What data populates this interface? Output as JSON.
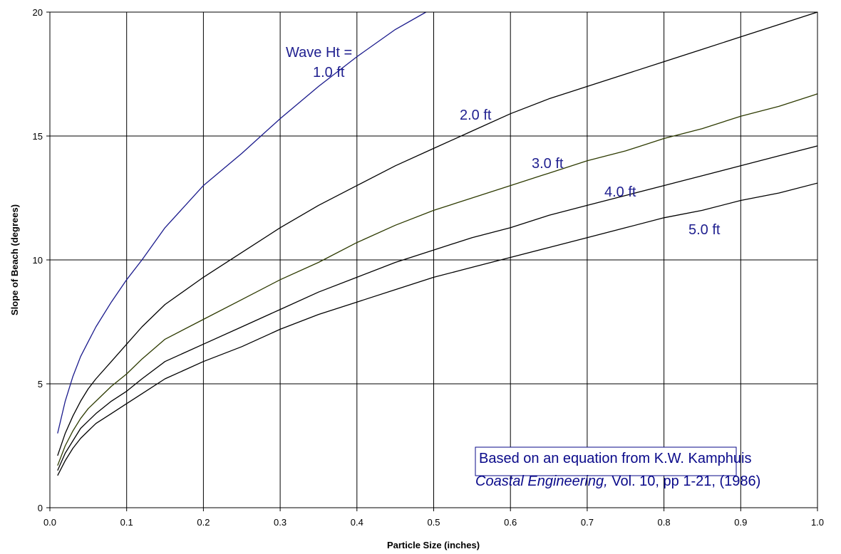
{
  "chart_data": {
    "type": "line",
    "title": "",
    "xlabel": "Particle Size (inches)",
    "ylabel": "Slope of Beach (degrees)",
    "xlim": [
      0.0,
      1.0
    ],
    "ylim": [
      0,
      20
    ],
    "x_ticks": [
      "0.0",
      "0.1",
      "0.2",
      "0.3",
      "0.4",
      "0.5",
      "0.6",
      "0.7",
      "0.8",
      "0.9",
      "1.0"
    ],
    "y_ticks": [
      "0",
      "5",
      "10",
      "15",
      "20"
    ],
    "grid": true,
    "legend": "none",
    "series": [
      {
        "name": "Wave Ht = 1.0 ft",
        "color": "#1a1a8c",
        "x": [
          0.01,
          0.02,
          0.03,
          0.04,
          0.05,
          0.06,
          0.08,
          0.1,
          0.12,
          0.15,
          0.2,
          0.25,
          0.3,
          0.35,
          0.4,
          0.45,
          0.49
        ],
        "y": [
          3.0,
          4.3,
          5.3,
          6.1,
          6.7,
          7.3,
          8.3,
          9.2,
          10.0,
          11.3,
          13.0,
          14.3,
          15.7,
          17.0,
          18.2,
          19.3,
          20.0
        ]
      },
      {
        "name": "2.0 ft",
        "color": "#000000",
        "x": [
          0.01,
          0.02,
          0.03,
          0.04,
          0.05,
          0.06,
          0.08,
          0.1,
          0.12,
          0.15,
          0.2,
          0.25,
          0.3,
          0.35,
          0.4,
          0.45,
          0.5,
          0.55,
          0.6,
          0.65,
          0.7,
          0.75,
          0.8,
          0.85,
          0.9,
          0.95,
          1.0
        ],
        "y": [
          2.1,
          3.0,
          3.7,
          4.3,
          4.8,
          5.2,
          5.9,
          6.6,
          7.3,
          8.2,
          9.3,
          10.3,
          11.3,
          12.2,
          13.0,
          13.8,
          14.5,
          15.2,
          15.9,
          16.5,
          17.0,
          17.5,
          18.0,
          18.5,
          19.0,
          19.5,
          20.0
        ]
      },
      {
        "name": "3.0 ft",
        "color": "#2d3a00",
        "x": [
          0.01,
          0.02,
          0.03,
          0.04,
          0.05,
          0.06,
          0.08,
          0.1,
          0.12,
          0.15,
          0.2,
          0.25,
          0.3,
          0.35,
          0.4,
          0.45,
          0.5,
          0.55,
          0.6,
          0.65,
          0.7,
          0.75,
          0.8,
          0.85,
          0.9,
          0.95,
          1.0
        ],
        "y": [
          1.7,
          2.5,
          3.1,
          3.6,
          4.0,
          4.3,
          4.9,
          5.4,
          6.0,
          6.8,
          7.6,
          8.4,
          9.2,
          9.9,
          10.7,
          11.4,
          12.0,
          12.5,
          13.0,
          13.5,
          14.0,
          14.4,
          14.9,
          15.3,
          15.8,
          16.2,
          16.7
        ]
      },
      {
        "name": "4.0 ft",
        "color": "#000000",
        "x": [
          0.01,
          0.02,
          0.03,
          0.04,
          0.05,
          0.06,
          0.08,
          0.1,
          0.12,
          0.15,
          0.2,
          0.25,
          0.3,
          0.35,
          0.4,
          0.45,
          0.5,
          0.55,
          0.6,
          0.65,
          0.7,
          0.75,
          0.8,
          0.85,
          0.9,
          0.95,
          1.0
        ],
        "y": [
          1.5,
          2.2,
          2.7,
          3.2,
          3.5,
          3.8,
          4.3,
          4.7,
          5.2,
          5.9,
          6.6,
          7.3,
          8.0,
          8.7,
          9.3,
          9.9,
          10.4,
          10.9,
          11.3,
          11.8,
          12.2,
          12.6,
          13.0,
          13.4,
          13.8,
          14.2,
          14.6
        ]
      },
      {
        "name": "5.0 ft",
        "color": "#000000",
        "x": [
          0.01,
          0.02,
          0.03,
          0.04,
          0.05,
          0.06,
          0.08,
          0.1,
          0.12,
          0.15,
          0.2,
          0.25,
          0.3,
          0.35,
          0.4,
          0.45,
          0.5,
          0.55,
          0.6,
          0.65,
          0.7,
          0.75,
          0.8,
          0.85,
          0.9,
          0.95,
          1.0
        ],
        "y": [
          1.3,
          1.9,
          2.4,
          2.8,
          3.1,
          3.4,
          3.8,
          4.2,
          4.6,
          5.2,
          5.9,
          6.5,
          7.2,
          7.8,
          8.3,
          8.8,
          9.3,
          9.7,
          10.1,
          10.5,
          10.9,
          11.3,
          11.7,
          12.0,
          12.4,
          12.7,
          13.1
        ]
      }
    ],
    "annotations": {
      "wave_label_line1": "Wave Ht =",
      "wave_label_line2": "1.0 ft",
      "label_2ft": "2.0 ft",
      "label_3ft": "3.0 ft",
      "label_4ft": "4.0 ft",
      "label_5ft": "5.0 ft",
      "note_line1": "Based on an equation from K.W. Kamphuis",
      "note_line2_italic": "Coastal Engineering,",
      "note_line2_rest": " Vol. 10, pp 1-21, (1986)"
    }
  }
}
